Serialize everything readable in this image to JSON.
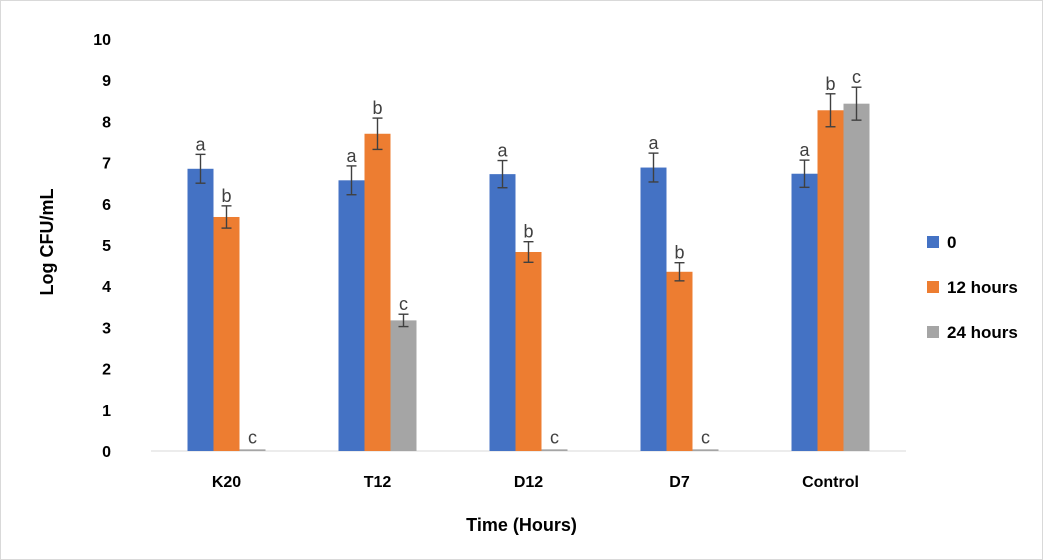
{
  "chart_data": {
    "type": "bar",
    "title": "",
    "xlabel": "Time  (Hours)",
    "ylabel": "Log CFU/mL",
    "ylim": [
      0,
      10
    ],
    "yticks": [
      "0",
      "1",
      "2",
      "3",
      "4",
      "5",
      "6",
      "7",
      "8",
      "9",
      "10"
    ],
    "grid": false,
    "legend_position": "right",
    "categories": [
      "K20",
      "T12",
      "D12",
      "D7",
      "Control"
    ],
    "series": [
      {
        "name": "0",
        "color": "#4472C4",
        "values": [
          6.85,
          6.57,
          6.72,
          6.88,
          6.73
        ],
        "errors": [
          0.35,
          0.35,
          0.33,
          0.35,
          0.33
        ],
        "labels": [
          "a",
          "a",
          "a",
          "a",
          "a"
        ]
      },
      {
        "name": "12 hours",
        "color": "#ED7D31",
        "values": [
          5.68,
          7.7,
          4.83,
          4.35,
          8.27
        ],
        "errors": [
          0.27,
          0.38,
          0.25,
          0.22,
          0.4
        ],
        "labels": [
          "b",
          "b",
          "b",
          "b",
          "b"
        ]
      },
      {
        "name": "24 hours",
        "color": "#A5A5A5",
        "values": [
          0.04,
          3.17,
          0.04,
          0.04,
          8.43
        ],
        "errors": [
          0,
          0.15,
          0,
          0,
          0.4
        ],
        "labels": [
          "c",
          "c",
          "c",
          "c",
          "c"
        ]
      }
    ]
  }
}
